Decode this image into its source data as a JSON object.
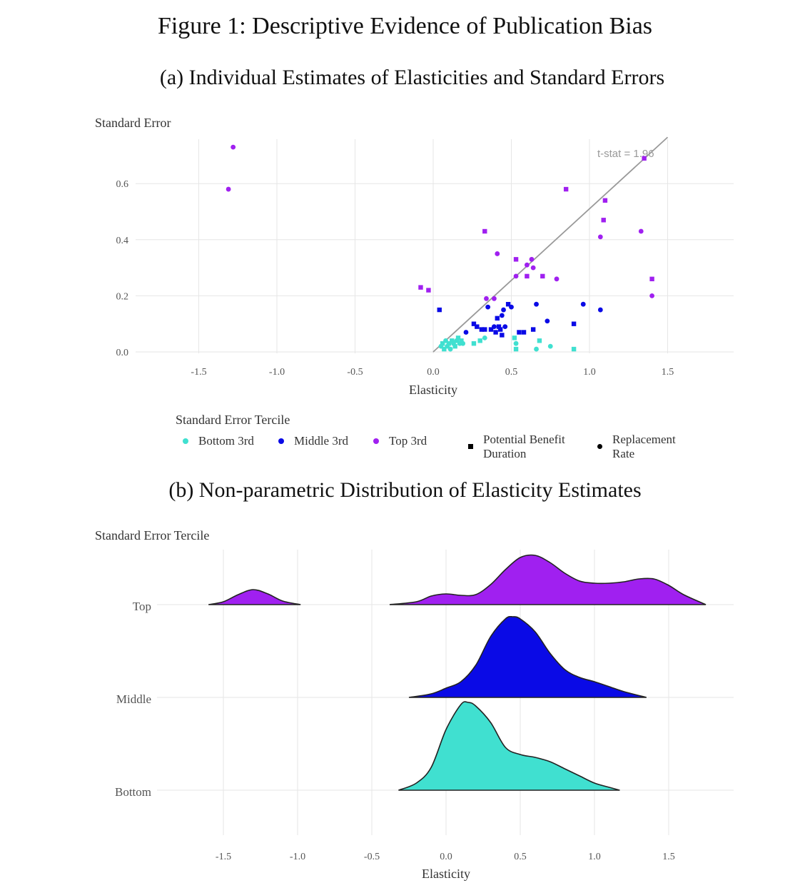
{
  "figure_title": "Figure 1: Descriptive Evidence of Publication Bias",
  "panel_a_title": "(a) Individual Estimates of Elasticities and Standard Errors",
  "panel_b_title": "(b) Non-parametric Distribution of Elasticity Estimates",
  "colors": {
    "bottom": "#40E0D0",
    "middle": "#0A0AE6",
    "top": "#A020F0",
    "grid": "#e6e6e6",
    "line": "#999999"
  },
  "legend": {
    "title": "Standard Error Tercile",
    "bottom_label": "Bottom 3rd",
    "middle_label": "Middle 3rd",
    "top_label": "Top 3rd",
    "shape_square_line1": "Potential Benefit",
    "shape_square_line2": "Duration",
    "shape_circle_line1": "Replacement",
    "shape_circle_line2": "Rate"
  },
  "chart_data": [
    {
      "type": "scatter",
      "title": "(a) Individual Estimates of Elasticities and Standard Errors",
      "xlabel": "Elasticity",
      "ylabel": "Standard Error",
      "xlim": [
        -1.5,
        1.9
      ],
      "ylim": [
        0,
        0.75
      ],
      "xticks": [
        "-1.5",
        "-1.0",
        "-0.5",
        "0.0",
        "0.5",
        "1.0",
        "1.5"
      ],
      "yticks": [
        "0.0",
        "0.2",
        "0.4",
        "0.6"
      ],
      "reference_line": {
        "label": "t-stat = 1.96",
        "slope": 0.5102
      },
      "grid": true,
      "series": [
        {
          "name": "Top 3rd",
          "tercile": "top",
          "points": [
            {
              "x": -1.28,
              "y": 0.73,
              "s": "circle"
            },
            {
              "x": -1.31,
              "y": 0.58,
              "s": "circle"
            },
            {
              "x": -0.08,
              "y": 0.23,
              "s": "square"
            },
            {
              "x": -0.03,
              "y": 0.22,
              "s": "square"
            },
            {
              "x": 0.33,
              "y": 0.43,
              "s": "square"
            },
            {
              "x": 0.34,
              "y": 0.19,
              "s": "circle"
            },
            {
              "x": 0.39,
              "y": 0.19,
              "s": "circle"
            },
            {
              "x": 0.41,
              "y": 0.35,
              "s": "circle"
            },
            {
              "x": 0.53,
              "y": 0.33,
              "s": "square"
            },
            {
              "x": 0.53,
              "y": 0.27,
              "s": "circle"
            },
            {
              "x": 0.6,
              "y": 0.31,
              "s": "circle"
            },
            {
              "x": 0.6,
              "y": 0.27,
              "s": "square"
            },
            {
              "x": 0.63,
              "y": 0.33,
              "s": "circle"
            },
            {
              "x": 0.64,
              "y": 0.3,
              "s": "circle"
            },
            {
              "x": 0.7,
              "y": 0.27,
              "s": "square"
            },
            {
              "x": 0.79,
              "y": 0.26,
              "s": "circle"
            },
            {
              "x": 0.85,
              "y": 0.58,
              "s": "square"
            },
            {
              "x": 1.07,
              "y": 0.41,
              "s": "circle"
            },
            {
              "x": 1.09,
              "y": 0.47,
              "s": "square"
            },
            {
              "x": 1.1,
              "y": 0.54,
              "s": "square"
            },
            {
              "x": 1.33,
              "y": 0.43,
              "s": "circle"
            },
            {
              "x": 1.35,
              "y": 0.69,
              "s": "square"
            },
            {
              "x": 1.4,
              "y": 0.26,
              "s": "square"
            },
            {
              "x": 1.4,
              "y": 0.2,
              "s": "circle"
            }
          ]
        },
        {
          "name": "Middle 3rd",
          "tercile": "middle",
          "points": [
            {
              "x": 0.04,
              "y": 0.15,
              "s": "square"
            },
            {
              "x": 0.21,
              "y": 0.07,
              "s": "circle"
            },
            {
              "x": 0.26,
              "y": 0.1,
              "s": "square"
            },
            {
              "x": 0.28,
              "y": 0.09,
              "s": "square"
            },
            {
              "x": 0.31,
              "y": 0.08,
              "s": "square"
            },
            {
              "x": 0.33,
              "y": 0.08,
              "s": "square"
            },
            {
              "x": 0.35,
              "y": 0.16,
              "s": "circle"
            },
            {
              "x": 0.37,
              "y": 0.08,
              "s": "square"
            },
            {
              "x": 0.39,
              "y": 0.09,
              "s": "circle"
            },
            {
              "x": 0.4,
              "y": 0.07,
              "s": "square"
            },
            {
              "x": 0.41,
              "y": 0.12,
              "s": "square"
            },
            {
              "x": 0.42,
              "y": 0.09,
              "s": "square"
            },
            {
              "x": 0.43,
              "y": 0.08,
              "s": "square"
            },
            {
              "x": 0.44,
              "y": 0.06,
              "s": "square"
            },
            {
              "x": 0.44,
              "y": 0.13,
              "s": "circle"
            },
            {
              "x": 0.45,
              "y": 0.15,
              "s": "circle"
            },
            {
              "x": 0.46,
              "y": 0.09,
              "s": "circle"
            },
            {
              "x": 0.48,
              "y": 0.17,
              "s": "square"
            },
            {
              "x": 0.5,
              "y": 0.16,
              "s": "circle"
            },
            {
              "x": 0.55,
              "y": 0.07,
              "s": "square"
            },
            {
              "x": 0.58,
              "y": 0.07,
              "s": "square"
            },
            {
              "x": 0.64,
              "y": 0.08,
              "s": "square"
            },
            {
              "x": 0.66,
              "y": 0.17,
              "s": "circle"
            },
            {
              "x": 0.73,
              "y": 0.11,
              "s": "circle"
            },
            {
              "x": 0.9,
              "y": 0.1,
              "s": "square"
            },
            {
              "x": 0.96,
              "y": 0.17,
              "s": "circle"
            },
            {
              "x": 1.07,
              "y": 0.15,
              "s": "circle"
            }
          ]
        },
        {
          "name": "Bottom 3rd",
          "tercile": "bottom",
          "points": [
            {
              "x": 0.05,
              "y": 0.02,
              "s": "circle"
            },
            {
              "x": 0.06,
              "y": 0.03,
              "s": "square"
            },
            {
              "x": 0.07,
              "y": 0.01,
              "s": "square"
            },
            {
              "x": 0.08,
              "y": 0.04,
              "s": "circle"
            },
            {
              "x": 0.09,
              "y": 0.02,
              "s": "circle"
            },
            {
              "x": 0.1,
              "y": 0.03,
              "s": "square"
            },
            {
              "x": 0.11,
              "y": 0.01,
              "s": "circle"
            },
            {
              "x": 0.12,
              "y": 0.04,
              "s": "square"
            },
            {
              "x": 0.13,
              "y": 0.03,
              "s": "circle"
            },
            {
              "x": 0.14,
              "y": 0.02,
              "s": "square"
            },
            {
              "x": 0.15,
              "y": 0.04,
              "s": "circle"
            },
            {
              "x": 0.16,
              "y": 0.05,
              "s": "square"
            },
            {
              "x": 0.17,
              "y": 0.03,
              "s": "circle"
            },
            {
              "x": 0.18,
              "y": 0.04,
              "s": "square"
            },
            {
              "x": 0.19,
              "y": 0.03,
              "s": "circle"
            },
            {
              "x": 0.26,
              "y": 0.03,
              "s": "square"
            },
            {
              "x": 0.3,
              "y": 0.04,
              "s": "square"
            },
            {
              "x": 0.33,
              "y": 0.05,
              "s": "circle"
            },
            {
              "x": 0.52,
              "y": 0.05,
              "s": "square"
            },
            {
              "x": 0.53,
              "y": 0.01,
              "s": "square"
            },
            {
              "x": 0.53,
              "y": 0.03,
              "s": "circle"
            },
            {
              "x": 0.66,
              "y": 0.01,
              "s": "circle"
            },
            {
              "x": 0.68,
              "y": 0.04,
              "s": "square"
            },
            {
              "x": 0.75,
              "y": 0.02,
              "s": "circle"
            },
            {
              "x": 0.9,
              "y": 0.01,
              "s": "square"
            }
          ]
        }
      ]
    },
    {
      "type": "area",
      "subtype": "ridgeline",
      "title": "(b) Non-parametric Distribution of Elasticity Estimates",
      "xlabel": "Elasticity",
      "ylabel": "Standard Error Tercile",
      "xlim": [
        -1.75,
        1.9
      ],
      "xticks": [
        "-1.5",
        "-1.0",
        "-0.5",
        "0.0",
        "0.5",
        "1.0",
        "1.5"
      ],
      "grid": true,
      "categories": [
        "Top",
        "Middle",
        "Bottom"
      ],
      "series": [
        {
          "name": "Top",
          "tercile": "top",
          "segments": [
            [
              [
                -1.6,
                0.0
              ],
              [
                -1.5,
                0.04
              ],
              [
                -1.4,
                0.14
              ],
              [
                -1.3,
                0.21
              ],
              [
                -1.2,
                0.15
              ],
              [
                -1.1,
                0.05
              ],
              [
                -0.98,
                0.0
              ]
            ],
            [
              [
                -0.38,
                0.0
              ],
              [
                -0.2,
                0.04
              ],
              [
                -0.1,
                0.12
              ],
              [
                0.0,
                0.15
              ],
              [
                0.1,
                0.13
              ],
              [
                0.2,
                0.14
              ],
              [
                0.3,
                0.28
              ],
              [
                0.4,
                0.49
              ],
              [
                0.5,
                0.66
              ],
              [
                0.6,
                0.69
              ],
              [
                0.7,
                0.59
              ],
              [
                0.8,
                0.44
              ],
              [
                0.9,
                0.33
              ],
              [
                1.0,
                0.3
              ],
              [
                1.1,
                0.3
              ],
              [
                1.2,
                0.32
              ],
              [
                1.3,
                0.36
              ],
              [
                1.4,
                0.36
              ],
              [
                1.5,
                0.27
              ],
              [
                1.6,
                0.14
              ],
              [
                1.75,
                0.0
              ]
            ]
          ]
        },
        {
          "name": "Middle",
          "tercile": "middle",
          "segments": [
            [
              [
                -0.25,
                0.0
              ],
              [
                -0.1,
                0.05
              ],
              [
                0.0,
                0.13
              ],
              [
                0.1,
                0.22
              ],
              [
                0.2,
                0.45
              ],
              [
                0.3,
                0.85
              ],
              [
                0.4,
                1.1
              ],
              [
                0.45,
                1.13
              ],
              [
                0.5,
                1.1
              ],
              [
                0.6,
                0.92
              ],
              [
                0.7,
                0.62
              ],
              [
                0.8,
                0.39
              ],
              [
                0.9,
                0.28
              ],
              [
                1.0,
                0.22
              ],
              [
                1.1,
                0.15
              ],
              [
                1.2,
                0.08
              ],
              [
                1.35,
                0.0
              ]
            ]
          ]
        },
        {
          "name": "Bottom",
          "tercile": "bottom",
          "segments": [
            [
              [
                -0.32,
                0.0
              ],
              [
                -0.2,
                0.1
              ],
              [
                -0.1,
                0.32
              ],
              [
                0.0,
                0.85
              ],
              [
                0.1,
                1.2
              ],
              [
                0.15,
                1.23
              ],
              [
                0.2,
                1.18
              ],
              [
                0.3,
                0.95
              ],
              [
                0.4,
                0.6
              ],
              [
                0.5,
                0.5
              ],
              [
                0.6,
                0.46
              ],
              [
                0.7,
                0.4
              ],
              [
                0.8,
                0.3
              ],
              [
                0.9,
                0.2
              ],
              [
                1.0,
                0.1
              ],
              [
                1.1,
                0.04
              ],
              [
                1.17,
                0.0
              ]
            ]
          ]
        }
      ]
    }
  ]
}
